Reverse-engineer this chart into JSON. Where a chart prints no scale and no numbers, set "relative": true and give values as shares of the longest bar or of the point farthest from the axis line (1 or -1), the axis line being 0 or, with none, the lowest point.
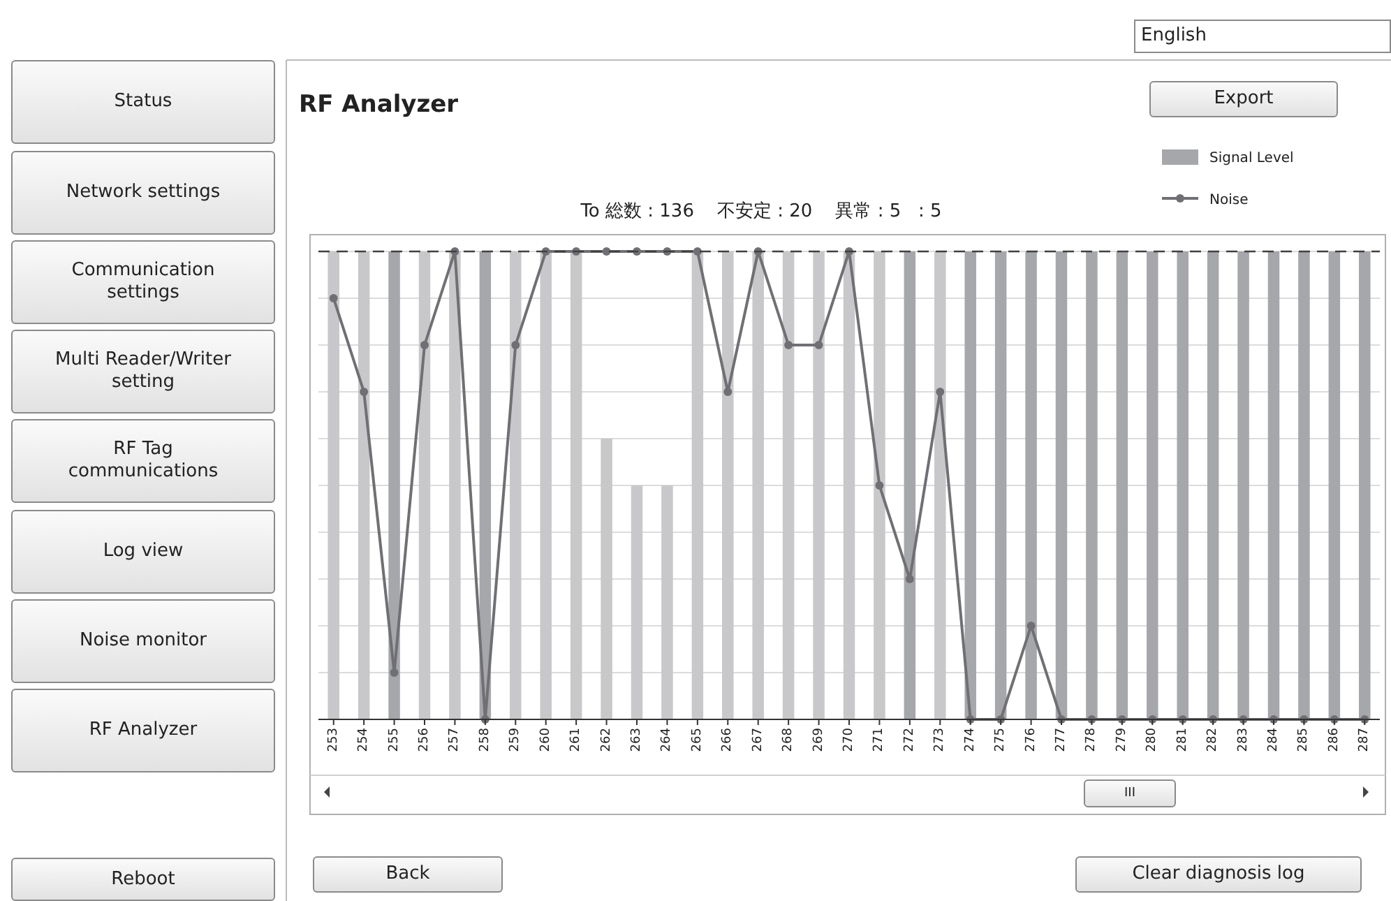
{
  "chart_data": {
    "type": "bar",
    "title": "RF Analyzer",
    "subtitle": "To 総数 : 136    不安定 : 20    異常 : 5   : 5",
    "categories": [
      "253",
      "254",
      "255",
      "256",
      "257",
      "258",
      "259",
      "260",
      "261",
      "262",
      "263",
      "264",
      "265",
      "266",
      "267",
      "268",
      "269",
      "270",
      "271",
      "272",
      "273",
      "274",
      "275",
      "276",
      "277",
      "278",
      "279",
      "280",
      "281",
      "282",
      "283",
      "284",
      "285",
      "286",
      "287"
    ],
    "series": [
      {
        "name": "Signal Level",
        "color": "#a5a7aa",
        "colors": [
          "#c8c8ca",
          "#c8c8ca",
          "#a5a7aa",
          "#c8c8ca",
          "#c8c8ca",
          "#a5a7aa",
          "#c8c8ca",
          "#c8c8ca",
          "#c8c8ca",
          "#c8c8ca",
          "#c8c8ca",
          "#c8c8ca",
          "#c8c8ca",
          "#c8c8ca",
          "#c8c8ca",
          "#c8c8ca",
          "#c8c8ca",
          "#c8c8ca",
          "#c8c8ca",
          "#a5a7aa",
          "#c8c8ca",
          "#a5a7aa",
          "#a5a7aa",
          "#a5a7aa",
          "#a5a7aa",
          "#a5a7aa",
          "#a5a7aa",
          "#a5a7aa",
          "#a5a7aa",
          "#a5a7aa",
          "#a5a7aa",
          "#a5a7aa",
          "#a5a7aa",
          "#a5a7aa",
          "#a5a7aa"
        ],
        "values": [
          1,
          1,
          1,
          1,
          1,
          1,
          1,
          1,
          1,
          0.6,
          0.5,
          0.5,
          1,
          1,
          1,
          1,
          1,
          1,
          1,
          1,
          1,
          1,
          1,
          1,
          1,
          1,
          1,
          1,
          1,
          1,
          1,
          1,
          1,
          1,
          1
        ]
      },
      {
        "name": "Noise",
        "type": "line",
        "color": "#707074",
        "marker": "circle",
        "values": [
          0.9,
          0.7,
          0.1,
          0.8,
          1,
          0,
          0.8,
          1,
          1,
          1,
          1,
          1,
          1,
          0.7,
          1,
          0.8,
          0.8,
          1,
          0.5,
          0.3,
          0.7,
          0,
          0,
          0.2,
          0,
          0,
          0,
          0,
          0,
          0,
          0,
          0,
          0,
          0,
          0
        ]
      }
    ],
    "relative": true,
    "legend": "top right",
    "grid": "y",
    "ref_lines": [
      {
        "axis": "y",
        "value": 1,
        "line_style": "dashed",
        "color": "#404040"
      }
    ],
    "annotations": [
      "Status",
      "Network settings",
      "Communication settings",
      "Multi Reader/Writer setting",
      "RF Tag communications",
      "Log view",
      "Noise monitor",
      "RF Analyzer",
      "Reboot",
      "English",
      "Export",
      "Back",
      "Clear diagnosis log",
      "III"
    ]
  }
}
